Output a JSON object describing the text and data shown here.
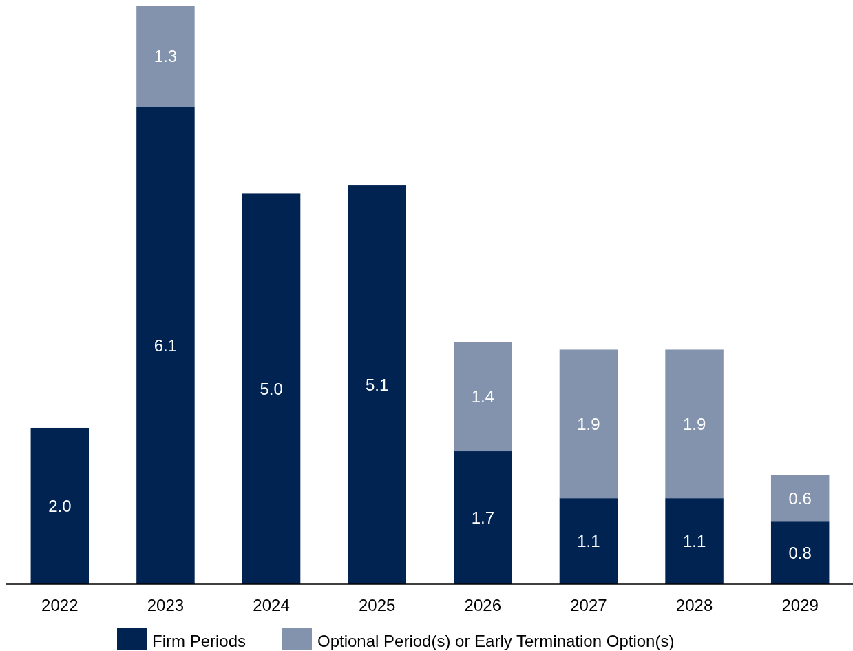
{
  "chart_data": {
    "type": "bar",
    "stacked": true,
    "legend": "bottom",
    "categories": [
      "2022",
      "2023",
      "2024",
      "2025",
      "2026",
      "2027",
      "2028",
      "2029"
    ],
    "series": [
      {
        "name": "Firm Periods",
        "color": "#002352",
        "values": [
          2.0,
          6.1,
          5.0,
          5.1,
          1.7,
          1.1,
          1.1,
          0.8
        ],
        "value_labels": [
          "2.0",
          "6.1",
          "5.0",
          "5.1",
          "1.7",
          "1.1",
          "1.1",
          "0.8"
        ]
      },
      {
        "name": "Optional Period(s) or Early Termination Option(s)",
        "color": "#8393ad",
        "values": [
          null,
          1.3,
          null,
          null,
          1.4,
          1.9,
          1.9,
          0.6
        ],
        "value_labels": [
          null,
          "1.3",
          null,
          null,
          "1.4",
          "1.9",
          "1.9",
          "0.6"
        ]
      }
    ]
  }
}
